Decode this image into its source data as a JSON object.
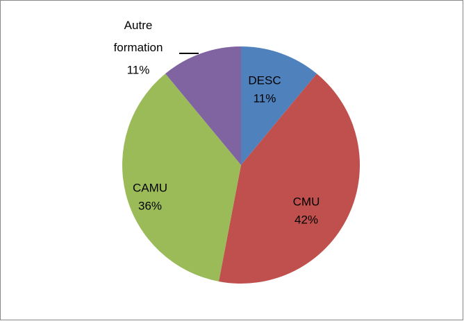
{
  "chart_data": {
    "type": "pie",
    "categories": [
      "DESC",
      "CMU",
      "CAMU",
      "Autre formation"
    ],
    "values": [
      11,
      42,
      36,
      11
    ],
    "value_labels": [
      "11%",
      "42%",
      "36%",
      "11%"
    ],
    "colors": [
      "#4f81bd",
      "#c0504d",
      "#9bbb59",
      "#8064a2"
    ]
  }
}
